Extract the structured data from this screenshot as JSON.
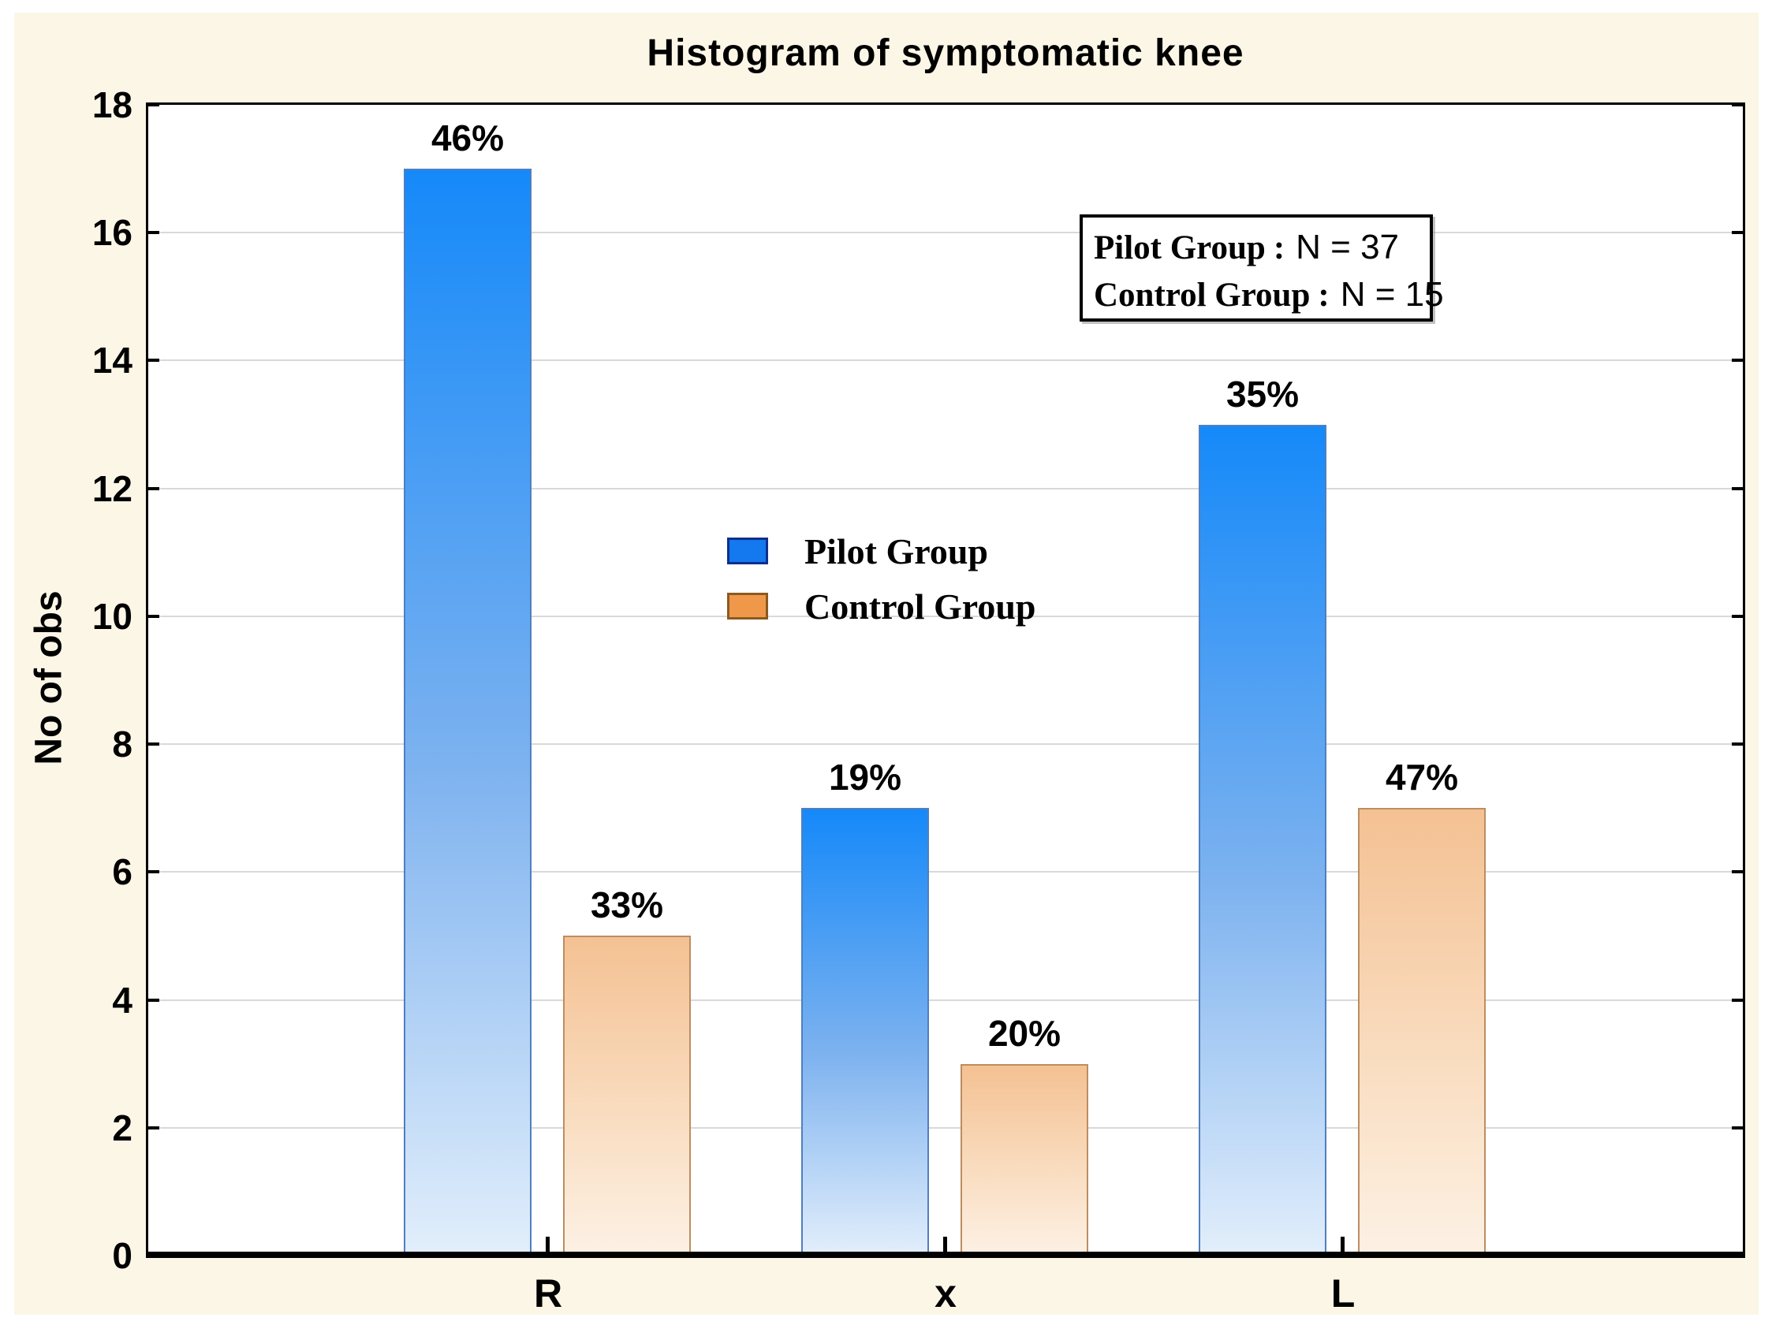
{
  "chart_data": {
    "type": "bar",
    "title": "Histogram of symptomatic knee",
    "xlabel": "",
    "ylabel": "No of obs",
    "categories": [
      "R",
      "x",
      "L"
    ],
    "series": [
      {
        "name": "Pilot Group",
        "values": [
          17,
          7,
          13
        ],
        "percent_labels": [
          "46%",
          "19%",
          "35%"
        ],
        "color_top": "#1589f9",
        "color_mid": "#7db2ef",
        "color_bottom": "#e2eefb",
        "border": "#4f7fc0"
      },
      {
        "name": "Control Group",
        "values": [
          5,
          3,
          7
        ],
        "percent_labels": [
          "33%",
          "20%",
          "47%"
        ],
        "color_top": "#f4c193",
        "color_mid": "#f9dcbf",
        "color_bottom": "#fdf1e4",
        "border": "#bd8d60"
      }
    ],
    "ylim": [
      0,
      18
    ],
    "yticks": [
      0,
      2,
      4,
      6,
      8,
      10,
      12,
      14,
      16,
      18
    ],
    "grid": "horizontal",
    "legend_position": "inside-center-left"
  },
  "legend": {
    "items": [
      {
        "label": "Pilot Group",
        "swatch": "#1478ee",
        "swatch_border": "#0d2f8e"
      },
      {
        "label": "Control Group",
        "swatch": "#f0984a",
        "swatch_border": "#8a5a20"
      }
    ]
  },
  "annotation": {
    "rows": [
      {
        "label": "Pilot Group",
        "colon": ":",
        "value": "N = 37"
      },
      {
        "label": "Control Group",
        "colon": ":",
        "value": "N = 15"
      }
    ]
  },
  "colors": {
    "page_bg": "#ffffff",
    "panel_bg": "#fbf6e6",
    "plot_bg": "#ffffff",
    "grid": "#d9d9d9",
    "axis": "#000000",
    "text": "#000000"
  }
}
